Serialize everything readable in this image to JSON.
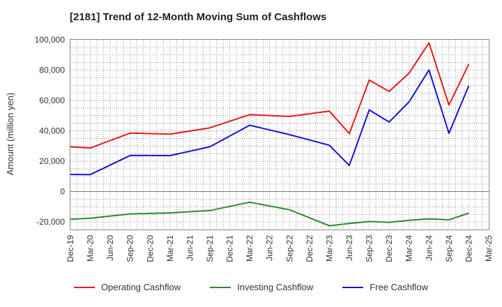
{
  "chart_data": {
    "type": "line",
    "title": "[2181]  Trend of 12-Month Moving Sum of Cashflows",
    "xlabel": "",
    "ylabel": "Amount (million yen)",
    "ylim": [
      -25000,
      100000
    ],
    "yticks": [
      100000,
      80000,
      60000,
      40000,
      20000,
      0,
      -20000
    ],
    "ytick_labels": [
      "100,000",
      "80,000",
      "60,000",
      "40,000",
      "20,000",
      "0",
      "-20,000"
    ],
    "categories": [
      "Dec-19",
      "Mar-20",
      "Jun-20",
      "Sep-20",
      "Dec-20",
      "Mar-21",
      "Jun-21",
      "Sep-21",
      "Dec-21",
      "Mar-22",
      "Jun-22",
      "Sep-22",
      "Dec-22",
      "Mar-23",
      "Jun-23",
      "Sep-23",
      "Dec-23",
      "Mar-24",
      "Jun-24",
      "Sep-24",
      "Dec-24",
      "Mar-25"
    ],
    "grid": true,
    "legend_position": "bottom",
    "series": [
      {
        "name": "Operating Cashflow",
        "color": "#e8191a",
        "values": [
          29500,
          28700,
          null,
          38500,
          null,
          37800,
          null,
          42000,
          null,
          50700,
          null,
          49500,
          null,
          53000,
          38200,
          73500,
          66000,
          78000,
          98000,
          57000,
          84000,
          null
        ]
      },
      {
        "name": "Investing Cashflow",
        "color": "#2d8a2d",
        "values": [
          -18200,
          -17500,
          null,
          -14700,
          null,
          -14000,
          null,
          -12500,
          null,
          -7000,
          null,
          -12000,
          null,
          -22500,
          -21000,
          -19700,
          -20200,
          -18900,
          -17900,
          -18600,
          -14200,
          null
        ]
      },
      {
        "name": "Free Cashflow",
        "color": "#1414d2",
        "values": [
          11300,
          11200,
          null,
          23800,
          null,
          23700,
          null,
          29500,
          null,
          43700,
          null,
          37500,
          null,
          30500,
          17200,
          53800,
          45800,
          59100,
          80100,
          38400,
          69800,
          null
        ]
      }
    ]
  }
}
